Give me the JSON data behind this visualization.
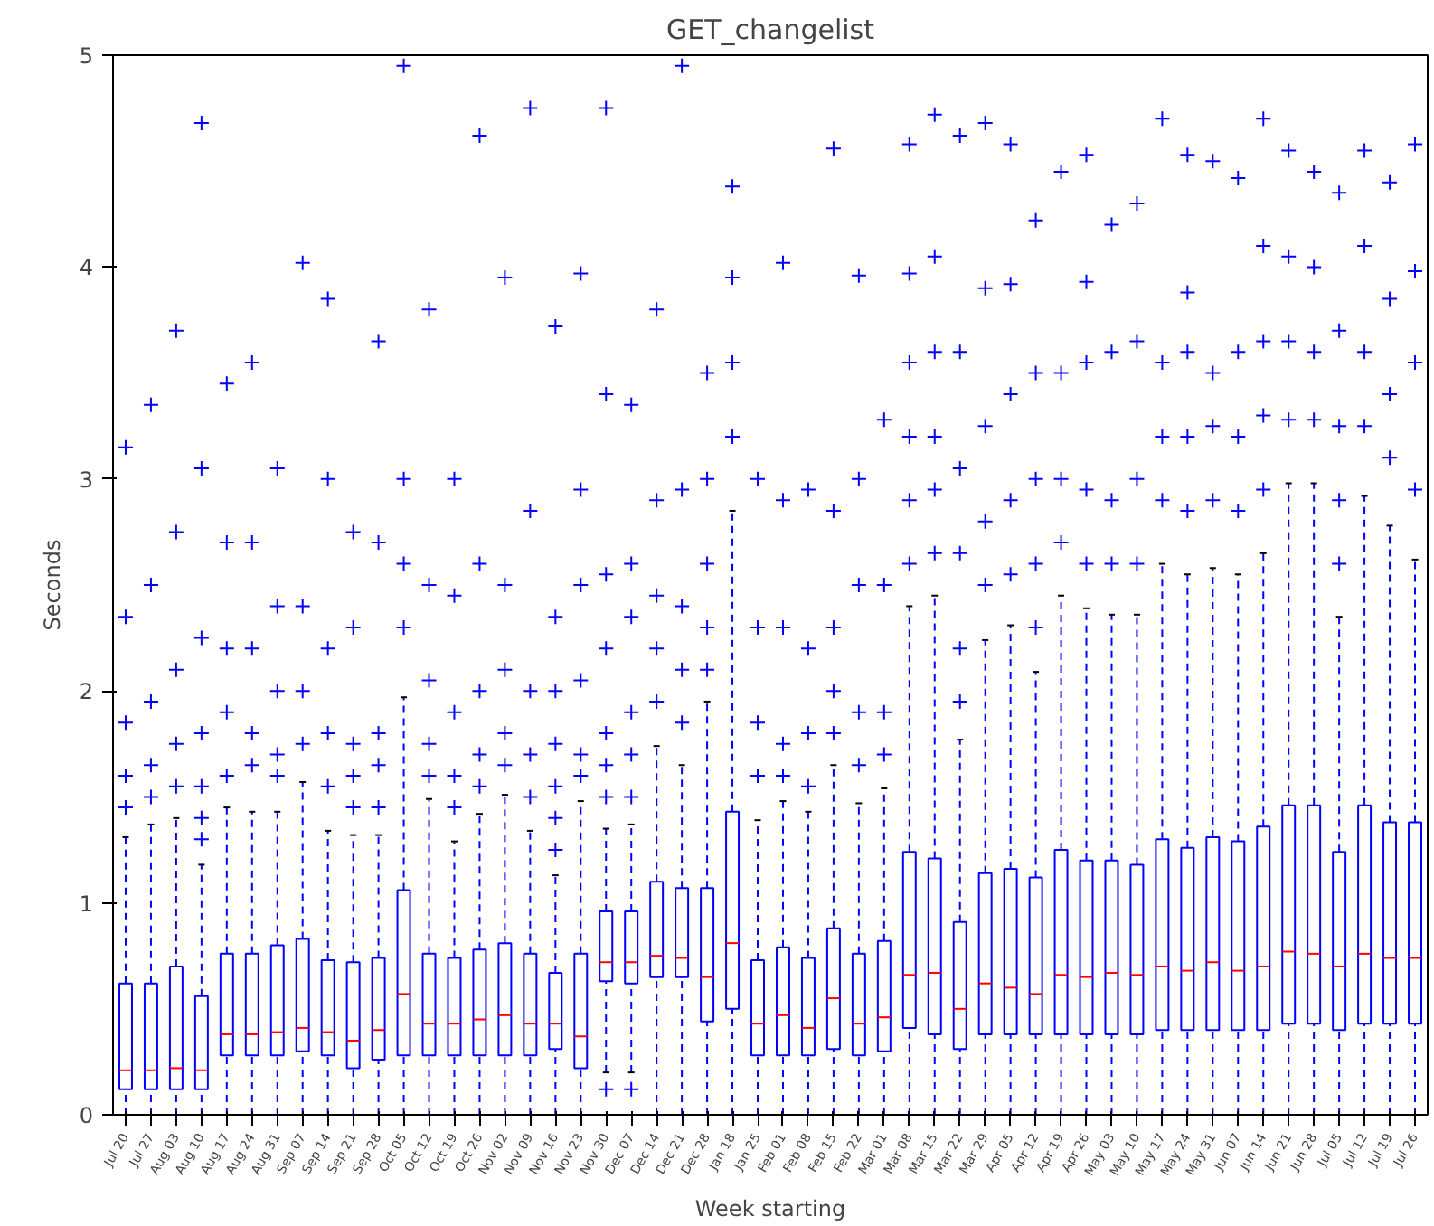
{
  "chart_data": {
    "type": "box",
    "title": "GET_changelist",
    "xlabel": "Week starting",
    "ylabel": "Seconds",
    "categories": [
      "Jul 20",
      "Jul 27",
      "Aug 03",
      "Aug 10",
      "Aug 17",
      "Aug 24",
      "Aug 31",
      "Sep 07",
      "Sep 14",
      "Sep 21",
      "Sep 28",
      "Oct 05",
      "Oct 12",
      "Oct 19",
      "Oct 26",
      "Nov 02",
      "Nov 09",
      "Nov 16",
      "Nov 23",
      "Nov 30",
      "Dec 07",
      "Dec 14",
      "Dec 21",
      "Dec 28",
      "Jan 18",
      "Jan 25",
      "Feb 01",
      "Feb 08",
      "Feb 15",
      "Feb 22",
      "Mar 01",
      "Mar 08",
      "Mar 15",
      "Mar 22",
      "Mar 29",
      "Apr 05",
      "Apr 12",
      "Apr 19",
      "Apr 26",
      "May 03",
      "May 10",
      "May 17",
      "May 24",
      "May 31",
      "Jun 07",
      "Jun 14",
      "Jun 21",
      "Jun 28",
      "Jul 05",
      "Jul 12",
      "Jul 19",
      "Jul 26"
    ],
    "color": "#0000ff",
    "marker": "cross",
    "ylim": [
      0,
      5
    ],
    "yticks": [
      0,
      1,
      2,
      3,
      4,
      5
    ],
    "grid": false,
    "boxes": [
      {
        "low": 0,
        "q1": 0.12,
        "median": 0.21,
        "q3": 0.62,
        "high": 1.31,
        "outliers": [
          1.45,
          1.6,
          1.85,
          2.35,
          3.15
        ]
      },
      {
        "low": 0,
        "q1": 0.12,
        "median": 0.21,
        "q3": 0.62,
        "high": 1.37,
        "outliers": [
          1.5,
          1.65,
          1.95,
          2.5,
          3.35
        ]
      },
      {
        "low": 0,
        "q1": 0.12,
        "median": 0.22,
        "q3": 0.7,
        "high": 1.4,
        "outliers": [
          1.55,
          1.75,
          2.1,
          2.75,
          3.7
        ]
      },
      {
        "low": 0,
        "q1": 0.12,
        "median": 0.21,
        "q3": 0.56,
        "high": 1.18,
        "outliers": [
          1.3,
          1.4,
          1.55,
          1.8,
          2.25,
          3.05,
          4.68
        ]
      },
      {
        "low": 0,
        "q1": 0.28,
        "median": 0.38,
        "q3": 0.76,
        "high": 1.45,
        "outliers": [
          1.6,
          1.9,
          2.2,
          2.7,
          3.45
        ]
      },
      {
        "low": 0,
        "q1": 0.28,
        "median": 0.38,
        "q3": 0.76,
        "high": 1.43,
        "outliers": [
          1.65,
          1.8,
          2.2,
          2.7,
          3.55
        ]
      },
      {
        "low": 0,
        "q1": 0.28,
        "median": 0.39,
        "q3": 0.8,
        "high": 1.43,
        "outliers": [
          1.6,
          1.7,
          2.0,
          2.4,
          3.05
        ]
      },
      {
        "low": 0,
        "q1": 0.3,
        "median": 0.41,
        "q3": 0.83,
        "high": 1.57,
        "outliers": [
          1.75,
          2.0,
          2.4,
          4.02
        ]
      },
      {
        "low": 0,
        "q1": 0.28,
        "median": 0.39,
        "q3": 0.73,
        "high": 1.34,
        "outliers": [
          1.55,
          1.8,
          2.2,
          3.0,
          3.85
        ]
      },
      {
        "low": 0,
        "q1": 0.22,
        "median": 0.35,
        "q3": 0.72,
        "high": 1.32,
        "outliers": [
          1.45,
          1.6,
          1.75,
          2.3,
          2.75
        ]
      },
      {
        "low": 0,
        "q1": 0.26,
        "median": 0.4,
        "q3": 0.74,
        "high": 1.32,
        "outliers": [
          1.45,
          1.65,
          1.8,
          2.7,
          3.65
        ]
      },
      {
        "low": 0,
        "q1": 0.28,
        "median": 0.57,
        "q3": 1.06,
        "high": 1.97,
        "outliers": [
          2.3,
          2.6,
          3.0,
          4.95
        ]
      },
      {
        "low": 0,
        "q1": 0.28,
        "median": 0.43,
        "q3": 0.76,
        "high": 1.49,
        "outliers": [
          1.6,
          1.75,
          2.05,
          2.5,
          3.8
        ]
      },
      {
        "low": 0,
        "q1": 0.28,
        "median": 0.43,
        "q3": 0.74,
        "high": 1.29,
        "outliers": [
          1.45,
          1.6,
          1.9,
          2.45,
          3.0
        ]
      },
      {
        "low": 0,
        "q1": 0.28,
        "median": 0.45,
        "q3": 0.78,
        "high": 1.42,
        "outliers": [
          1.55,
          1.7,
          2.0,
          2.6,
          4.62
        ]
      },
      {
        "low": 0,
        "q1": 0.28,
        "median": 0.47,
        "q3": 0.81,
        "high": 1.51,
        "outliers": [
          1.65,
          1.8,
          2.1,
          2.5,
          3.95
        ]
      },
      {
        "low": 0,
        "q1": 0.28,
        "median": 0.43,
        "q3": 0.76,
        "high": 1.34,
        "outliers": [
          1.5,
          1.7,
          2.0,
          2.85,
          4.75
        ]
      },
      {
        "low": 0,
        "q1": 0.31,
        "median": 0.43,
        "q3": 0.67,
        "high": 1.13,
        "outliers": [
          1.25,
          1.4,
          1.55,
          1.75,
          2.0,
          2.35,
          3.72
        ]
      },
      {
        "low": 0,
        "q1": 0.22,
        "median": 0.37,
        "q3": 0.76,
        "high": 1.48,
        "outliers": [
          1.6,
          1.7,
          2.05,
          2.5,
          2.95,
          3.97
        ]
      },
      {
        "low": 0.2,
        "q1": 0.63,
        "median": 0.72,
        "q3": 0.96,
        "high": 1.35,
        "outliers": [
          0.12,
          1.5,
          1.65,
          1.8,
          2.2,
          2.55,
          3.4,
          4.75
        ]
      },
      {
        "low": 0.2,
        "q1": 0.62,
        "median": 0.72,
        "q3": 0.96,
        "high": 1.37,
        "outliers": [
          0.12,
          1.5,
          1.7,
          1.9,
          2.35,
          2.6,
          3.35
        ]
      },
      {
        "low": 0,
        "q1": 0.65,
        "median": 0.75,
        "q3": 1.1,
        "high": 1.74,
        "outliers": [
          1.95,
          2.2,
          2.45,
          2.9,
          3.8
        ]
      },
      {
        "low": 0,
        "q1": 0.65,
        "median": 0.74,
        "q3": 1.07,
        "high": 1.65,
        "outliers": [
          1.85,
          2.1,
          2.4,
          2.95,
          4.95
        ]
      },
      {
        "low": 0,
        "q1": 0.44,
        "median": 0.65,
        "q3": 1.07,
        "high": 1.95,
        "outliers": [
          2.1,
          2.3,
          2.6,
          3.0,
          3.5
        ]
      },
      {
        "low": 0,
        "q1": 0.5,
        "median": 0.81,
        "q3": 1.43,
        "high": 2.85,
        "outliers": [
          3.2,
          3.55,
          3.95,
          4.38
        ]
      },
      {
        "low": 0,
        "q1": 0.28,
        "median": 0.43,
        "q3": 0.73,
        "high": 1.39,
        "outliers": [
          1.6,
          1.85,
          2.3,
          3.0
        ]
      },
      {
        "low": 0,
        "q1": 0.28,
        "median": 0.47,
        "q3": 0.79,
        "high": 1.48,
        "outliers": [
          1.6,
          1.75,
          2.3,
          2.9,
          4.02
        ]
      },
      {
        "low": 0,
        "q1": 0.28,
        "median": 0.41,
        "q3": 0.74,
        "high": 1.43,
        "outliers": [
          1.55,
          1.8,
          2.2,
          2.95
        ]
      },
      {
        "low": 0,
        "q1": 0.31,
        "median": 0.55,
        "q3": 0.88,
        "high": 1.65,
        "outliers": [
          1.8,
          2.0,
          2.3,
          2.85,
          4.56
        ]
      },
      {
        "low": 0,
        "q1": 0.28,
        "median": 0.43,
        "q3": 0.76,
        "high": 1.47,
        "outliers": [
          1.65,
          1.9,
          2.5,
          3.0,
          3.96
        ]
      },
      {
        "low": 0,
        "q1": 0.3,
        "median": 0.46,
        "q3": 0.82,
        "high": 1.54,
        "outliers": [
          1.7,
          1.9,
          2.5,
          3.28
        ]
      },
      {
        "low": 0,
        "q1": 0.41,
        "median": 0.66,
        "q3": 1.24,
        "high": 2.4,
        "outliers": [
          2.6,
          2.9,
          3.2,
          3.55,
          3.97,
          4.58
        ]
      },
      {
        "low": 0,
        "q1": 0.38,
        "median": 0.67,
        "q3": 1.21,
        "high": 2.45,
        "outliers": [
          2.65,
          2.95,
          3.2,
          3.6,
          4.05,
          4.72
        ]
      },
      {
        "low": 0,
        "q1": 0.31,
        "median": 0.5,
        "q3": 0.91,
        "high": 1.77,
        "outliers": [
          1.95,
          2.2,
          2.65,
          3.05,
          3.6,
          4.62
        ]
      },
      {
        "low": 0,
        "q1": 0.38,
        "median": 0.62,
        "q3": 1.14,
        "high": 2.24,
        "outliers": [
          2.5,
          2.8,
          3.25,
          3.9,
          4.68
        ]
      },
      {
        "low": 0,
        "q1": 0.38,
        "median": 0.6,
        "q3": 1.16,
        "high": 2.31,
        "outliers": [
          2.55,
          2.9,
          3.4,
          3.92,
          4.58
        ]
      },
      {
        "low": 0,
        "q1": 0.38,
        "median": 0.57,
        "q3": 1.12,
        "high": 2.09,
        "outliers": [
          2.3,
          2.6,
          3.0,
          3.5,
          4.22
        ]
      },
      {
        "low": 0,
        "q1": 0.38,
        "median": 0.66,
        "q3": 1.25,
        "high": 2.45,
        "outliers": [
          2.7,
          3.0,
          3.5,
          4.45
        ]
      },
      {
        "low": 0,
        "q1": 0.38,
        "median": 0.65,
        "q3": 1.2,
        "high": 2.39,
        "outliers": [
          2.6,
          2.95,
          3.55,
          3.93,
          4.53
        ]
      },
      {
        "low": 0,
        "q1": 0.38,
        "median": 0.67,
        "q3": 1.2,
        "high": 2.36,
        "outliers": [
          2.6,
          2.9,
          3.6,
          4.2
        ]
      },
      {
        "low": 0,
        "q1": 0.38,
        "median": 0.66,
        "q3": 1.18,
        "high": 2.36,
        "outliers": [
          2.6,
          3.0,
          3.65,
          4.3
        ]
      },
      {
        "low": 0,
        "q1": 0.4,
        "median": 0.7,
        "q3": 1.3,
        "high": 2.6,
        "outliers": [
          2.9,
          3.2,
          3.55,
          4.7
        ]
      },
      {
        "low": 0,
        "q1": 0.4,
        "median": 0.68,
        "q3": 1.26,
        "high": 2.55,
        "outliers": [
          2.85,
          3.2,
          3.6,
          3.88,
          4.53
        ]
      },
      {
        "low": 0,
        "q1": 0.4,
        "median": 0.72,
        "q3": 1.31,
        "high": 2.58,
        "outliers": [
          2.9,
          3.25,
          3.5,
          4.5
        ]
      },
      {
        "low": 0,
        "q1": 0.4,
        "median": 0.68,
        "q3": 1.29,
        "high": 2.55,
        "outliers": [
          2.85,
          3.2,
          3.6,
          4.42
        ]
      },
      {
        "low": 0,
        "q1": 0.4,
        "median": 0.7,
        "q3": 1.36,
        "high": 2.65,
        "outliers": [
          2.95,
          3.3,
          3.65,
          4.1,
          4.7
        ]
      },
      {
        "low": 0,
        "q1": 0.43,
        "median": 0.77,
        "q3": 1.46,
        "high": 2.98,
        "outliers": [
          3.28,
          3.65,
          4.05,
          4.55
        ]
      },
      {
        "low": 0,
        "q1": 0.43,
        "median": 0.76,
        "q3": 1.46,
        "high": 2.98,
        "outliers": [
          3.28,
          3.6,
          4.0,
          4.45
        ]
      },
      {
        "low": 0,
        "q1": 0.4,
        "median": 0.7,
        "q3": 1.24,
        "high": 2.35,
        "outliers": [
          2.6,
          2.9,
          3.25,
          3.7,
          4.35
        ]
      },
      {
        "low": 0,
        "q1": 0.43,
        "median": 0.76,
        "q3": 1.46,
        "high": 2.92,
        "outliers": [
          3.25,
          3.6,
          4.1,
          4.55
        ]
      },
      {
        "low": 0,
        "q1": 0.43,
        "median": 0.74,
        "q3": 1.38,
        "high": 2.78,
        "outliers": [
          3.1,
          3.4,
          3.85,
          4.4
        ]
      },
      {
        "low": 0,
        "q1": 0.43,
        "median": 0.74,
        "q3": 1.38,
        "high": 2.62,
        "outliers": [
          2.95,
          3.55,
          3.98,
          4.58
        ]
      }
    ]
  }
}
